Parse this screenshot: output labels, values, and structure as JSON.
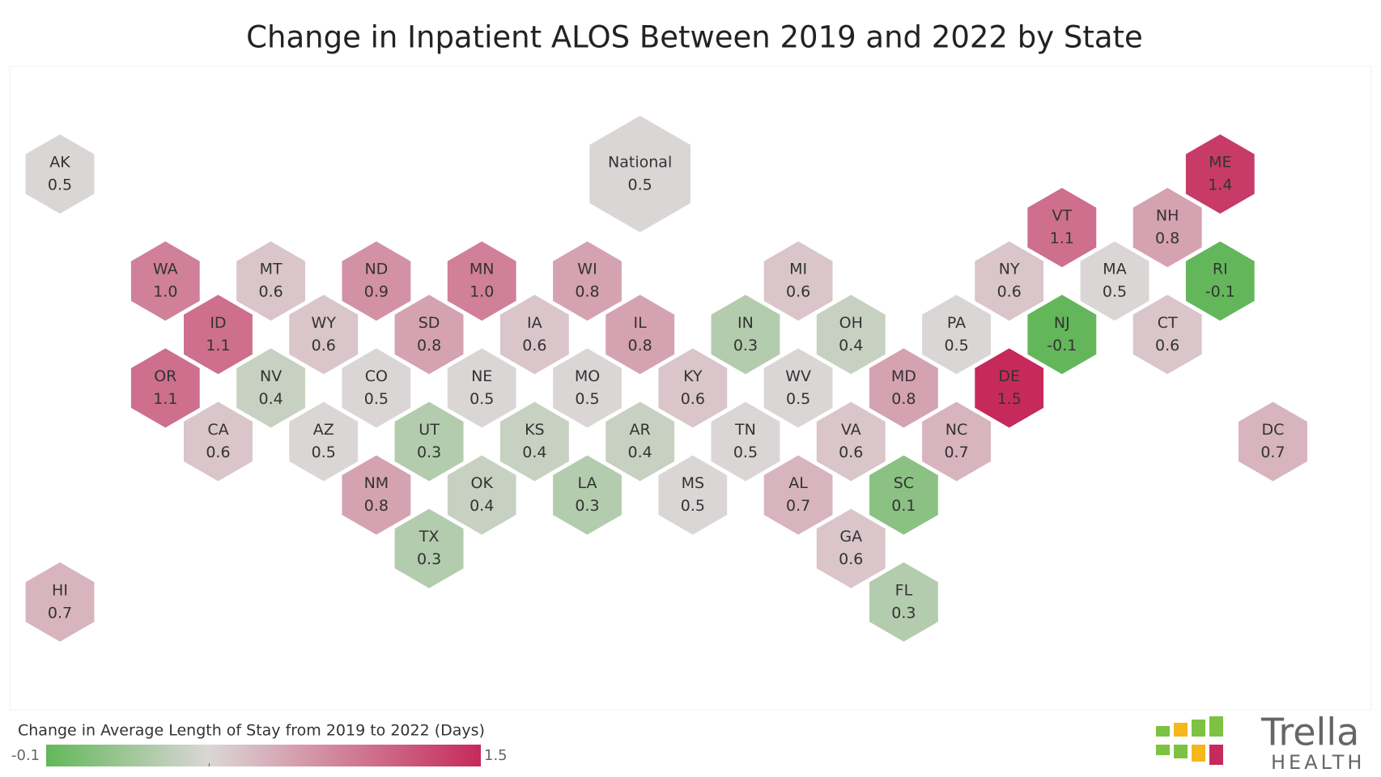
{
  "chart_data": {
    "type": "hexmap",
    "title": "Change in Inpatient ALOS Between 2019 and 2022 by State",
    "categories": [
      "AK",
      "National",
      "ME",
      "VT",
      "NH",
      "WA",
      "MT",
      "ND",
      "MN",
      "WI",
      "MI",
      "NY",
      "MA",
      "RI",
      "ID",
      "WY",
      "SD",
      "IA",
      "IL",
      "IN",
      "OH",
      "PA",
      "NJ",
      "CT",
      "OR",
      "NV",
      "CO",
      "NE",
      "MO",
      "KY",
      "WV",
      "MD",
      "DE",
      "CA",
      "AZ",
      "UT",
      "KS",
      "AR",
      "TN",
      "VA",
      "NC",
      "DC",
      "NM",
      "OK",
      "LA",
      "MS",
      "AL",
      "SC",
      "TX",
      "GA",
      "HI",
      "FL"
    ],
    "values": [
      0.5,
      0.5,
      1.4,
      1.1,
      0.8,
      1.0,
      0.6,
      0.9,
      1.0,
      0.8,
      0.6,
      0.6,
      0.5,
      -0.1,
      1.1,
      0.6,
      0.8,
      0.6,
      0.8,
      0.3,
      0.4,
      0.5,
      -0.1,
      0.6,
      1.1,
      0.4,
      0.5,
      0.5,
      0.5,
      0.6,
      0.5,
      0.8,
      1.5,
      0.6,
      0.5,
      0.3,
      0.4,
      0.4,
      0.5,
      0.6,
      0.7,
      0.7,
      0.8,
      0.4,
      0.3,
      0.5,
      0.7,
      0.1,
      0.3,
      0.6,
      0.7,
      0.3
    ],
    "value_labels": [
      "0.5",
      "0.5",
      "1.4",
      "1.1",
      "0.8",
      "1.0",
      "0.6",
      "0.9",
      "1.0",
      "0.8",
      "0.6",
      "0.6",
      "0.5",
      "-0.1",
      "1.1",
      "0.6",
      "0.8",
      "0.6",
      "0.8",
      "0.3",
      "0.4",
      "0.5",
      "-0.1",
      "0.6",
      "1.1",
      "0.4",
      "0.5",
      "0.5",
      "0.5",
      "0.6",
      "0.5",
      "0.8",
      "1.5",
      "0.6",
      "0.5",
      "0.3",
      "0.4",
      "0.4",
      "0.5",
      "0.6",
      "0.7",
      "0.7",
      "0.8",
      "0.4",
      "0.3",
      "0.5",
      "0.7",
      "0.1",
      "0.3",
      "0.6",
      "0.7",
      "0.3"
    ],
    "colorscale": {
      "title": "Change in Average Length of Stay from 2019 to 2022 (Days)",
      "min": -0.1,
      "max": 1.5,
      "mid": 0.5,
      "colors": [
        "#63b75a",
        "#dbd6d6",
        "#c62a5c"
      ]
    }
  },
  "logo": {
    "name": "Trella",
    "tagline": "HEALTH"
  }
}
